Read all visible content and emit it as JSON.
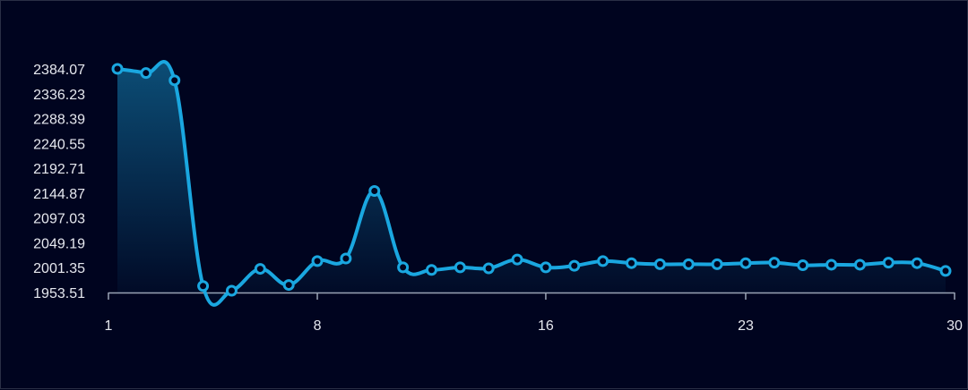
{
  "colors": {
    "background": "#00041f",
    "line": "#1aa7e0",
    "axis": "#9aa3b5",
    "point_fill": "#00041f"
  },
  "chart_data": {
    "type": "area",
    "title": "",
    "xlabel": "",
    "ylabel": "",
    "x": [
      1,
      2,
      3,
      4,
      5,
      6,
      7,
      8,
      9,
      10,
      11,
      12,
      13,
      14,
      15,
      16,
      17,
      18,
      19,
      20,
      21,
      22,
      23,
      24,
      25,
      26,
      27,
      28,
      29,
      30
    ],
    "values": [
      2384.07,
      2376,
      2362,
      1966,
      1957,
      1999,
      1968,
      2014,
      2019,
      2149,
      2002,
      1997,
      2002,
      2000,
      2017,
      2002,
      2005,
      2014,
      2010,
      2008,
      2008,
      2008,
      2010,
      2011,
      2006,
      2007,
      2007,
      2011,
      2010,
      1995
    ],
    "xticks": [
      "1",
      "8",
      "16",
      "23",
      "30"
    ],
    "xtick_positions": [
      1,
      8,
      16,
      23,
      30
    ],
    "yticks": [
      "1953.51",
      "2001.35",
      "2049.19",
      "2097.03",
      "2144.87",
      "2192.71",
      "2240.55",
      "2288.39",
      "2336.23",
      "2384.07"
    ],
    "ylim": [
      1953.51,
      2384.07
    ],
    "xlim": [
      1,
      30
    ],
    "grid": false,
    "smooth": true,
    "markers": true,
    "area_fill": true
  }
}
